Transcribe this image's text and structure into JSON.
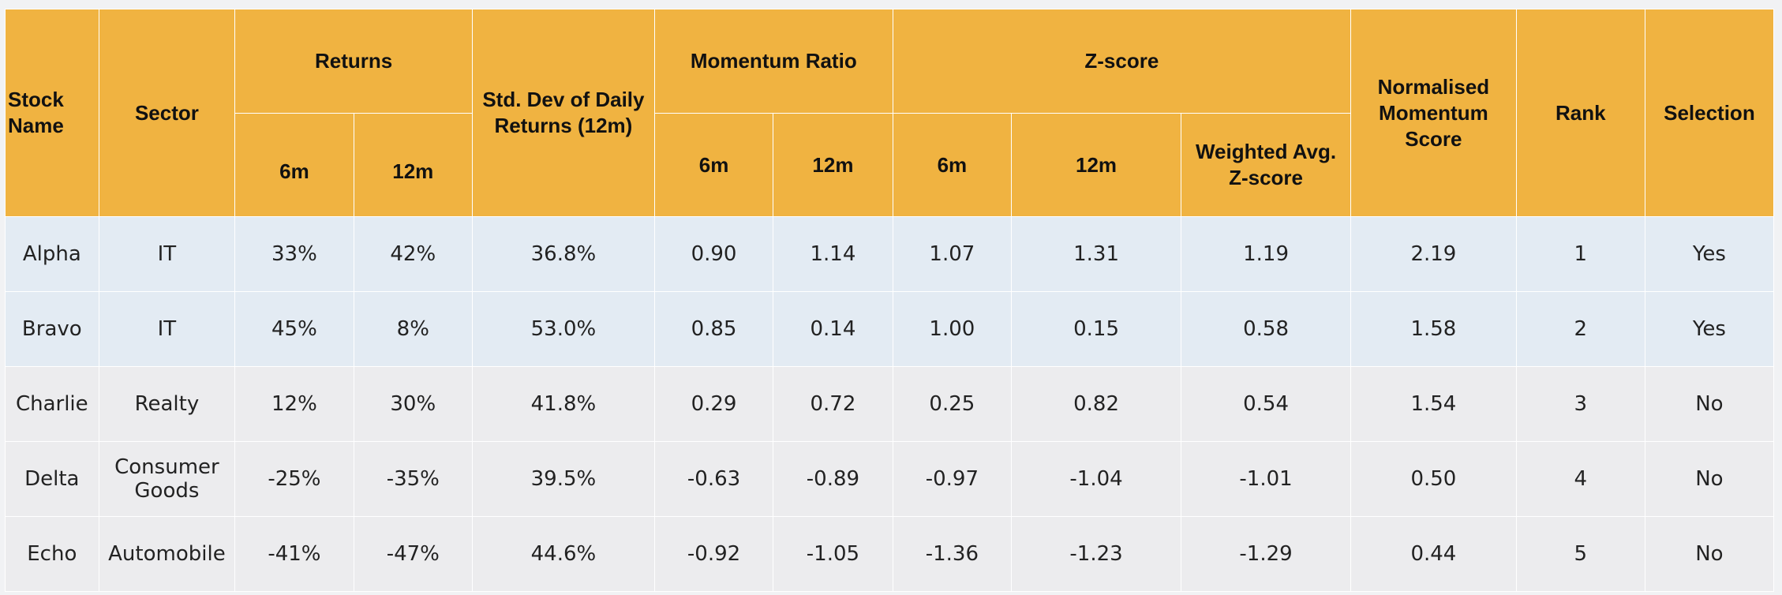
{
  "headers": {
    "stock_name": "Stock Name",
    "sector": "Sector",
    "returns": "Returns",
    "returns_6m": "6m",
    "returns_12m": "12m",
    "std_dev": "Std. Dev of Daily Returns (12m)",
    "momentum_ratio": "Momentum Ratio",
    "momentum_6m": "6m",
    "momentum_12m": "12m",
    "zscore": "Z-score",
    "zscore_6m": "6m",
    "zscore_12m": "12m",
    "weighted_avg": "Weighted Avg. Z-score",
    "normalised": "Normalised Momentum Score",
    "rank": "Rank",
    "selection": "Selection"
  },
  "rows": [
    {
      "name": "Alpha",
      "sector": "IT",
      "ret6": "33%",
      "ret12": "42%",
      "std": "36.8%",
      "mr6": "0.90",
      "mr12": "1.14",
      "z6": "1.07",
      "z12": "1.31",
      "wavg": "1.19",
      "norm": "2.19",
      "rank": "1",
      "sel": "Yes"
    },
    {
      "name": "Bravo",
      "sector": "IT",
      "ret6": "45%",
      "ret12": "8%",
      "std": "53.0%",
      "mr6": "0.85",
      "mr12": "0.14",
      "z6": "1.00",
      "z12": "0.15",
      "wavg": "0.58",
      "norm": "1.58",
      "rank": "2",
      "sel": "Yes"
    },
    {
      "name": "Charlie",
      "sector": "Realty",
      "ret6": "12%",
      "ret12": "30%",
      "std": "41.8%",
      "mr6": "0.29",
      "mr12": "0.72",
      "z6": "0.25",
      "z12": "0.82",
      "wavg": "0.54",
      "norm": "1.54",
      "rank": "3",
      "sel": "No"
    },
    {
      "name": "Delta",
      "sector": "Consumer Goods",
      "ret6": "-25%",
      "ret12": "-35%",
      "std": "39.5%",
      "mr6": "-0.63",
      "mr12": "-0.89",
      "z6": "-0.97",
      "z12": "-1.04",
      "wavg": "-1.01",
      "norm": "0.50",
      "rank": "4",
      "sel": "No"
    },
    {
      "name": "Echo",
      "sector": "Automobile",
      "ret6": "-41%",
      "ret12": "-47%",
      "std": "44.6%",
      "mr6": "-0.92",
      "mr12": "-1.05",
      "z6": "-1.36",
      "z12": "-1.23",
      "wavg": "-1.29",
      "norm": "0.44",
      "rank": "5",
      "sel": "No"
    }
  ],
  "colors": {
    "header_bg": "#f0b341",
    "selected_row_bg": "#e3ebf3",
    "unselected_row_bg": "#ececee"
  }
}
